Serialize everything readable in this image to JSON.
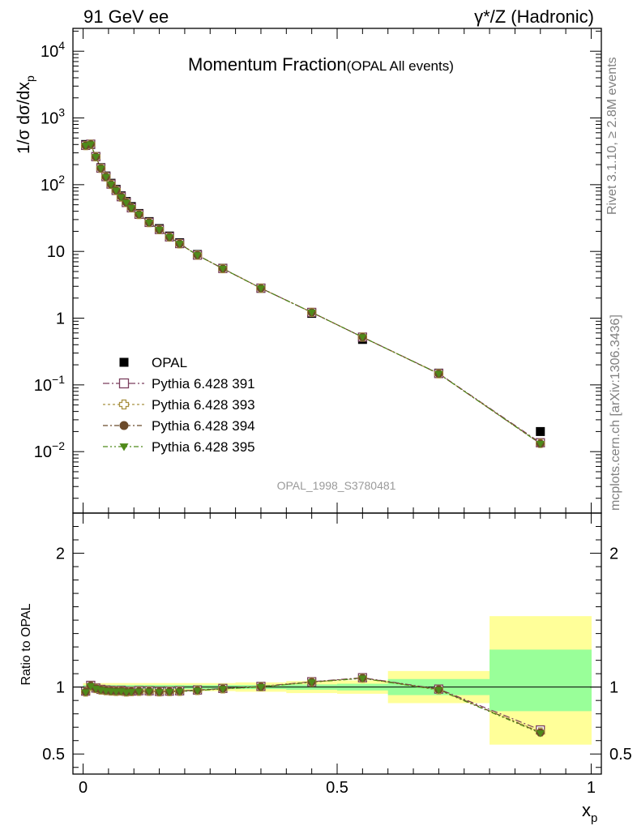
{
  "header": {
    "left_label": "91 GeV ee",
    "right_label": "γ*/Z (Hadronic)"
  },
  "side_labels": {
    "rivet": "Rivet 3.1.10, ≥ 2.8M events",
    "mcplots": "mcplots.cern.ch [arXiv:1306.3436]"
  },
  "chart_data": {
    "type": "scatter",
    "title_main": "Momentum Fraction",
    "title_sub": "(OPAL All events)",
    "analysis_id": "OPAL_1998_S3780481",
    "ylabel": "1/σ dσ/dx",
    "ylabel_sub": "p",
    "xlabel": "x",
    "xlabel_sub": "p",
    "xlim": [
      -0.02,
      1.02
    ],
    "ylim": [
      0.0012,
      22000
    ],
    "yscale": "log",
    "x_ticks": [
      {
        "value": 0,
        "label": "0"
      },
      {
        "value": 0.5,
        "label": "0.5"
      },
      {
        "value": 1,
        "label": "1"
      }
    ],
    "y_ticks": [
      {
        "value": 0.01,
        "base": "10",
        "exp": "−2"
      },
      {
        "value": 0.1,
        "base": "10",
        "exp": "−1"
      },
      {
        "value": 1,
        "base": "1",
        "exp": ""
      },
      {
        "value": 10,
        "base": "10",
        "exp": ""
      },
      {
        "value": 100,
        "base": "10",
        "exp": "2"
      },
      {
        "value": 1000,
        "base": "10",
        "exp": "3"
      },
      {
        "value": 10000,
        "base": "10",
        "exp": "4"
      }
    ],
    "legend_placement": "bottom-left",
    "x": [
      0.005,
      0.015,
      0.025,
      0.035,
      0.045,
      0.055,
      0.065,
      0.075,
      0.085,
      0.095,
      0.11,
      0.13,
      0.15,
      0.17,
      0.19,
      0.225,
      0.275,
      0.35,
      0.45,
      0.55,
      0.7,
      0.9
    ],
    "series": [
      {
        "name": "OPAL",
        "marker": "square-filled",
        "color": "#000000",
        "values": [
          400,
          400,
          265,
          180,
          135,
          105,
          85,
          68,
          56,
          47,
          37,
          28,
          22,
          17,
          13.5,
          9.0,
          5.6,
          2.8,
          1.18,
          0.48,
          0.15,
          0.02
        ]
      },
      {
        "name": "Pythia 6.428 391",
        "marker": "square-open",
        "color": "#7b3f5e",
        "dash": "8,3,2,3",
        "values": [
          388,
          405,
          263,
          177,
          132,
          102,
          82,
          66,
          54,
          45,
          36,
          27.2,
          21.3,
          16.5,
          13.1,
          8.8,
          5.55,
          2.82,
          1.22,
          0.52,
          0.148,
          0.0136
        ]
      },
      {
        "name": "Pythia 6.428 393",
        "marker": "cross-open",
        "color": "#a89040",
        "dash": "3,3",
        "values": [
          385,
          403,
          262,
          176,
          131,
          101,
          82,
          65,
          54,
          45,
          35.8,
          27.1,
          21.2,
          16.4,
          13.0,
          8.8,
          5.52,
          2.81,
          1.22,
          0.52,
          0.147,
          0.0133
        ]
      },
      {
        "name": "Pythia 6.428 394",
        "marker": "circle-filled",
        "color": "#6b4a2a",
        "dash": "6,3,2,3",
        "values": [
          386,
          404,
          262,
          176,
          131,
          101,
          82,
          66,
          54,
          45,
          35.9,
          27.1,
          21.2,
          16.4,
          13.0,
          8.8,
          5.53,
          2.81,
          1.22,
          0.52,
          0.147,
          0.0132
        ]
      },
      {
        "name": "Pythia 6.428 395",
        "marker": "triangle-down-filled",
        "color": "#4f8a1a",
        "dash": "6,3,2,3,2,3",
        "values": [
          385,
          403,
          261,
          176,
          131,
          101,
          82,
          65,
          54,
          45,
          35.8,
          27.0,
          21.2,
          16.4,
          13.0,
          8.8,
          5.52,
          2.81,
          1.22,
          0.52,
          0.147,
          0.0131
        ]
      }
    ],
    "ratio": {
      "ylabel": "Ratio to OPAL",
      "ylim": [
        0.35,
        2.3
      ],
      "y_ticks": [
        {
          "value": 0.5,
          "label": "0.5"
        },
        {
          "value": 1,
          "label": "1"
        },
        {
          "value": 2,
          "label": "2"
        }
      ],
      "bands": [
        {
          "x0": 0.0,
          "x1": 0.01,
          "green": [
            0.985,
            1.015
          ],
          "yellow": [
            0.97,
            1.03
          ]
        },
        {
          "x0": 0.01,
          "x1": 0.02,
          "green": [
            0.985,
            1.015
          ],
          "yellow": [
            0.97,
            1.03
          ]
        },
        {
          "x0": 0.02,
          "x1": 0.03,
          "green": [
            0.985,
            1.015
          ],
          "yellow": [
            0.97,
            1.03
          ]
        },
        {
          "x0": 0.03,
          "x1": 0.04,
          "green": [
            0.985,
            1.015
          ],
          "yellow": [
            0.97,
            1.03
          ]
        },
        {
          "x0": 0.04,
          "x1": 0.05,
          "green": [
            0.985,
            1.015
          ],
          "yellow": [
            0.97,
            1.03
          ]
        },
        {
          "x0": 0.05,
          "x1": 0.06,
          "green": [
            0.985,
            1.015
          ],
          "yellow": [
            0.97,
            1.03
          ]
        },
        {
          "x0": 0.06,
          "x1": 0.07,
          "green": [
            0.985,
            1.015
          ],
          "yellow": [
            0.97,
            1.03
          ]
        },
        {
          "x0": 0.07,
          "x1": 0.08,
          "green": [
            0.985,
            1.015
          ],
          "yellow": [
            0.97,
            1.03
          ]
        },
        {
          "x0": 0.08,
          "x1": 0.09,
          "green": [
            0.985,
            1.015
          ],
          "yellow": [
            0.97,
            1.03
          ]
        },
        {
          "x0": 0.09,
          "x1": 0.1,
          "green": [
            0.985,
            1.015
          ],
          "yellow": [
            0.97,
            1.03
          ]
        },
        {
          "x0": 0.1,
          "x1": 0.12,
          "green": [
            0.985,
            1.015
          ],
          "yellow": [
            0.97,
            1.03
          ]
        },
        {
          "x0": 0.12,
          "x1": 0.14,
          "green": [
            0.985,
            1.015
          ],
          "yellow": [
            0.97,
            1.03
          ]
        },
        {
          "x0": 0.14,
          "x1": 0.16,
          "green": [
            0.985,
            1.015
          ],
          "yellow": [
            0.97,
            1.03
          ]
        },
        {
          "x0": 0.16,
          "x1": 0.18,
          "green": [
            0.985,
            1.015
          ],
          "yellow": [
            0.97,
            1.03
          ]
        },
        {
          "x0": 0.18,
          "x1": 0.2,
          "green": [
            0.985,
            1.015
          ],
          "yellow": [
            0.97,
            1.03
          ]
        },
        {
          "x0": 0.2,
          "x1": 0.25,
          "green": [
            0.985,
            1.015
          ],
          "yellow": [
            0.97,
            1.03
          ]
        },
        {
          "x0": 0.25,
          "x1": 0.3,
          "green": [
            0.985,
            1.015
          ],
          "yellow": [
            0.97,
            1.03
          ]
        },
        {
          "x0": 0.3,
          "x1": 0.4,
          "green": [
            0.985,
            1.015
          ],
          "yellow": [
            0.965,
            1.035
          ]
        },
        {
          "x0": 0.4,
          "x1": 0.5,
          "green": [
            0.98,
            1.02
          ],
          "yellow": [
            0.955,
            1.045
          ]
        },
        {
          "x0": 0.5,
          "x1": 0.6,
          "green": [
            0.975,
            1.025
          ],
          "yellow": [
            0.95,
            1.05
          ]
        },
        {
          "x0": 0.6,
          "x1": 0.8,
          "green": [
            0.94,
            1.06
          ],
          "yellow": [
            0.88,
            1.12
          ]
        },
        {
          "x0": 0.8,
          "x1": 1.0,
          "green": [
            0.82,
            1.28
          ],
          "yellow": [
            0.57,
            1.53
          ]
        }
      ],
      "series": [
        {
          "name": "Pythia 6.428 391",
          "values": [
            0.97,
            1.013,
            0.993,
            0.983,
            0.978,
            0.975,
            0.972,
            0.975,
            0.968,
            0.97,
            0.973,
            0.972,
            0.968,
            0.97,
            0.972,
            0.978,
            0.99,
            1.005,
            1.04,
            1.07,
            0.985,
            0.68
          ]
        },
        {
          "name": "Pythia 6.428 393",
          "values": [
            0.963,
            1.008,
            0.989,
            0.978,
            0.973,
            0.97,
            0.968,
            0.97,
            0.963,
            0.966,
            0.968,
            0.968,
            0.964,
            0.966,
            0.968,
            0.975,
            0.987,
            1.002,
            1.037,
            1.066,
            0.98,
            0.665
          ]
        },
        {
          "name": "Pythia 6.428 394",
          "values": [
            0.965,
            1.01,
            0.99,
            0.98,
            0.975,
            0.972,
            0.97,
            0.972,
            0.965,
            0.968,
            0.97,
            0.97,
            0.966,
            0.968,
            0.97,
            0.976,
            0.988,
            1.003,
            1.038,
            1.068,
            0.982,
            0.66
          ]
        },
        {
          "name": "Pythia 6.428 395",
          "values": [
            0.962,
            1.007,
            0.988,
            0.978,
            0.972,
            0.969,
            0.967,
            0.969,
            0.962,
            0.965,
            0.967,
            0.967,
            0.963,
            0.965,
            0.967,
            0.974,
            0.986,
            1.001,
            1.036,
            1.065,
            0.978,
            0.655
          ]
        }
      ]
    }
  }
}
